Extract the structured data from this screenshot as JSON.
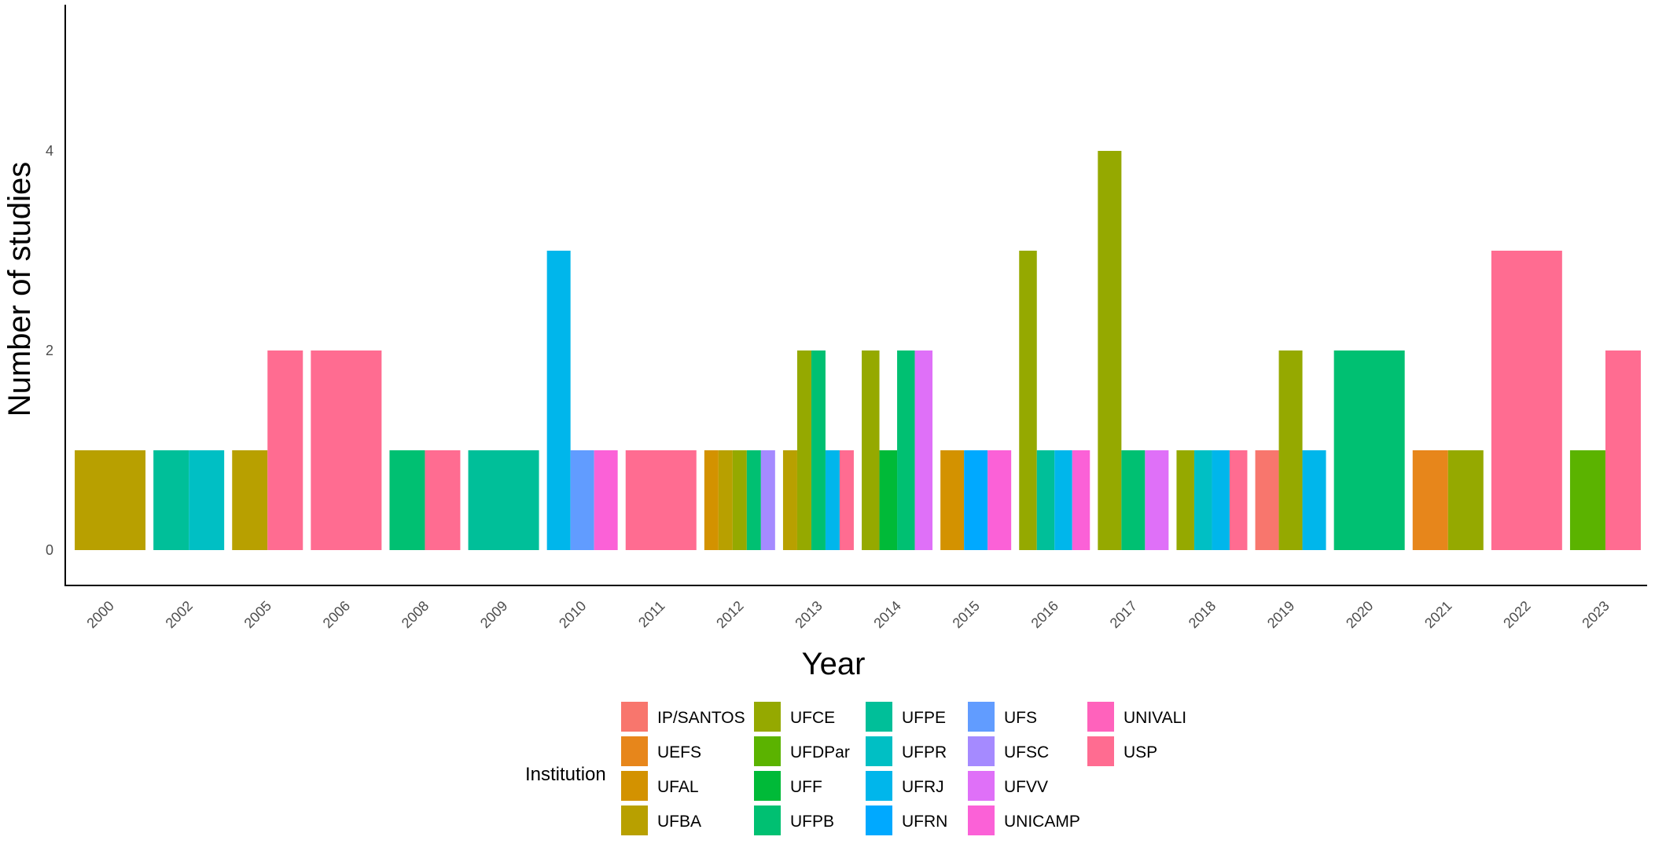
{
  "chart_data": {
    "type": "bar",
    "title": "",
    "xlabel": "Year",
    "ylabel": "Number of studies",
    "ylim": [
      0,
      5.4
    ],
    "yticks": [
      0,
      2,
      4
    ],
    "legend_title": "Institution",
    "legend_position": "bottom",
    "institutions": [
      {
        "name": "IP/SANTOS",
        "color": "#F8766D"
      },
      {
        "name": "UEFS",
        "color": "#E7861B"
      },
      {
        "name": "UFAL",
        "color": "#D39200"
      },
      {
        "name": "UFBA",
        "color": "#B8A000"
      },
      {
        "name": "UFCE",
        "color": "#95A900"
      },
      {
        "name": "UFDPar",
        "color": "#5BB300"
      },
      {
        "name": "UFF",
        "color": "#00BA38"
      },
      {
        "name": "UFPB",
        "color": "#00C072"
      },
      {
        "name": "UFPE",
        "color": "#00BF99"
      },
      {
        "name": "UFPR",
        "color": "#00BFC4"
      },
      {
        "name": "UFRJ",
        "color": "#00B6EB"
      },
      {
        "name": "UFRN",
        "color": "#00A9FF"
      },
      {
        "name": "UFS",
        "color": "#619CFF"
      },
      {
        "name": "UFSC",
        "color": "#A58AFF"
      },
      {
        "name": "UFVV",
        "color": "#DF70F8"
      },
      {
        "name": "UNICAMP",
        "color": "#FB61D7"
      },
      {
        "name": "UNIVALI",
        "color": "#FF62BC"
      },
      {
        "name": "USP",
        "color": "#FF6C91"
      }
    ],
    "years": [
      {
        "year": "2000",
        "bars": [
          {
            "institution": "UFBA",
            "value": 1
          }
        ]
      },
      {
        "year": "2002",
        "bars": [
          {
            "institution": "UFPE",
            "value": 1
          },
          {
            "institution": "UFPR",
            "value": 1
          }
        ]
      },
      {
        "year": "2005",
        "bars": [
          {
            "institution": "UFBA",
            "value": 1
          },
          {
            "institution": "USP",
            "value": 2
          }
        ]
      },
      {
        "year": "2006",
        "bars": [
          {
            "institution": "USP",
            "value": 2
          }
        ]
      },
      {
        "year": "2008",
        "bars": [
          {
            "institution": "UFPB",
            "value": 1
          },
          {
            "institution": "USP",
            "value": 1
          }
        ]
      },
      {
        "year": "2009",
        "bars": [
          {
            "institution": "UFPE",
            "value": 1
          }
        ]
      },
      {
        "year": "2010",
        "bars": [
          {
            "institution": "UFRJ",
            "value": 3
          },
          {
            "institution": "UFS",
            "value": 1
          },
          {
            "institution": "UNICAMP",
            "value": 1
          }
        ]
      },
      {
        "year": "2011",
        "bars": [
          {
            "institution": "USP",
            "value": 1
          }
        ]
      },
      {
        "year": "2012",
        "bars": [
          {
            "institution": "UFAL",
            "value": 1
          },
          {
            "institution": "UFBA",
            "value": 1
          },
          {
            "institution": "UFCE",
            "value": 1
          },
          {
            "institution": "UFPB",
            "value": 1
          },
          {
            "institution": "UFSC",
            "value": 1
          }
        ]
      },
      {
        "year": "2013",
        "bars": [
          {
            "institution": "UFBA",
            "value": 1
          },
          {
            "institution": "UFCE",
            "value": 2
          },
          {
            "institution": "UFPB",
            "value": 2
          },
          {
            "institution": "UFRJ",
            "value": 1
          },
          {
            "institution": "USP",
            "value": 1
          }
        ]
      },
      {
        "year": "2014",
        "bars": [
          {
            "institution": "UFCE",
            "value": 2
          },
          {
            "institution": "UFF",
            "value": 1
          },
          {
            "institution": "UFPB",
            "value": 2
          },
          {
            "institution": "UFVV",
            "value": 2
          }
        ]
      },
      {
        "year": "2015",
        "bars": [
          {
            "institution": "UFAL",
            "value": 1
          },
          {
            "institution": "UFRN",
            "value": 1
          },
          {
            "institution": "UNICAMP",
            "value": 1
          }
        ]
      },
      {
        "year": "2016",
        "bars": [
          {
            "institution": "UFCE",
            "value": 3
          },
          {
            "institution": "UFPE",
            "value": 1
          },
          {
            "institution": "UFRJ",
            "value": 1
          },
          {
            "institution": "UNICAMP",
            "value": 1
          }
        ]
      },
      {
        "year": "2017",
        "bars": [
          {
            "institution": "UFCE",
            "value": 4
          },
          {
            "institution": "UFPB",
            "value": 1
          },
          {
            "institution": "UFVV",
            "value": 1
          }
        ]
      },
      {
        "year": "2018",
        "bars": [
          {
            "institution": "UFCE",
            "value": 1
          },
          {
            "institution": "UFPR",
            "value": 1
          },
          {
            "institution": "UFRJ",
            "value": 1
          },
          {
            "institution": "USP",
            "value": 1
          }
        ]
      },
      {
        "year": "2019",
        "bars": [
          {
            "institution": "IP/SANTOS",
            "value": 1
          },
          {
            "institution": "UFCE",
            "value": 2
          },
          {
            "institution": "UFRJ",
            "value": 1
          }
        ]
      },
      {
        "year": "2020",
        "bars": [
          {
            "institution": "UFPB",
            "value": 2
          }
        ]
      },
      {
        "year": "2021",
        "bars": [
          {
            "institution": "UEFS",
            "value": 1
          },
          {
            "institution": "UFCE",
            "value": 1
          }
        ]
      },
      {
        "year": "2022",
        "bars": [
          {
            "institution": "USP",
            "value": 3
          }
        ]
      },
      {
        "year": "2023",
        "bars": [
          {
            "institution": "UFDPar",
            "value": 1
          },
          {
            "institution": "USP",
            "value": 2
          }
        ]
      }
    ]
  }
}
